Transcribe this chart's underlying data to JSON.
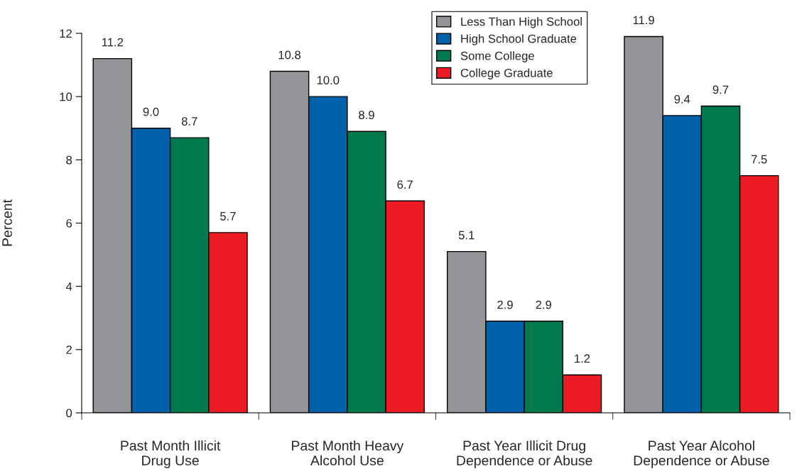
{
  "chart_data": {
    "type": "bar",
    "ylabel": "Percent",
    "categories": [
      "Past Month Illicit\nDrug Use",
      "Past Month Heavy\nAlcohol Use",
      "Past Year Illicit Drug\nDependence or Abuse",
      "Past Year Alcohol\nDependence or Abuse"
    ],
    "series": [
      {
        "name": "Less Than High School",
        "color": "#939598",
        "values": [
          11.2,
          10.8,
          5.1,
          11.9
        ],
        "value_labels": [
          "11.2",
          "10.8",
          "5.1",
          "11.9"
        ]
      },
      {
        "name": "High School Graduate",
        "color": "#0060a9",
        "values": [
          9.0,
          10.0,
          2.9,
          9.4
        ],
        "value_labels": [
          "9.0",
          "10.0",
          "2.9",
          "9.4"
        ]
      },
      {
        "name": "Some College",
        "color": "#007a4d",
        "values": [
          8.7,
          8.9,
          2.9,
          9.7
        ],
        "value_labels": [
          "8.7",
          "8.9",
          "2.9",
          "9.7"
        ]
      },
      {
        "name": "College Graduate",
        "color": "#ed1c24",
        "values": [
          5.7,
          6.7,
          1.2,
          7.5
        ],
        "value_labels": [
          "5.7",
          "6.7",
          "1.2",
          "7.5"
        ]
      }
    ],
    "ylim": [
      0,
      12
    ],
    "yticks": [
      0,
      2,
      4,
      6,
      8,
      10,
      12
    ],
    "legend": "top right",
    "grid": false
  }
}
